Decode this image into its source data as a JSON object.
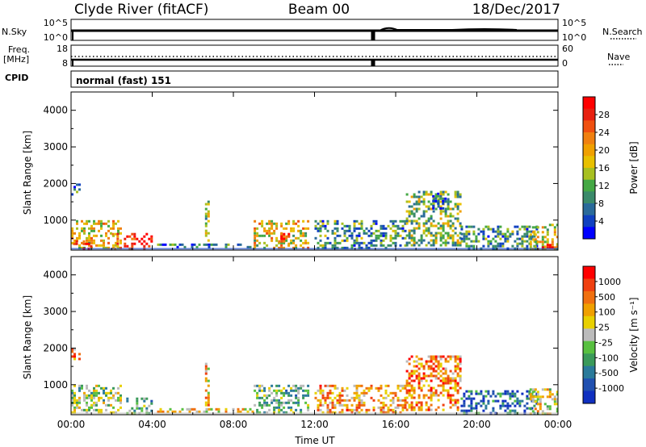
{
  "header": {
    "title": "Clyde River (fitACF)",
    "beam": "Beam 00",
    "date": "18/Dec/2017"
  },
  "strip": {
    "left_label_1": "N.Sky",
    "left_ticks_1": [
      "10^5",
      "10^0"
    ],
    "right_label_1": "N.Search",
    "right_ticks_1": [
      "10^5",
      "10^0"
    ],
    "left_label_2a": "Freq.",
    "left_label_2b": "[MHz]",
    "left_ticks_2": [
      "18",
      "8"
    ],
    "right_label_2": "Nave",
    "right_ticks_2": [
      "60",
      "0"
    ],
    "cpid_label": "CPID",
    "cpid_text": "normal (fast) 151"
  },
  "chart_data": [
    {
      "type": "heatmap",
      "title": "",
      "xlabel": "Time UT",
      "ylabel": "Slant Range [km]",
      "xlim": [
        0,
        24
      ],
      "ylim": [
        180,
        4500
      ],
      "xticks": [
        "00:00",
        "04:00",
        "08:00",
        "12:00",
        "16:00",
        "20:00",
        "00:00"
      ],
      "yticks": [
        1000,
        2000,
        3000,
        4000
      ],
      "colorbar": {
        "label": "Power [dB]",
        "ticks": [
          4,
          8,
          12,
          16,
          20,
          24,
          28
        ],
        "colors": [
          "#0000ff",
          "#1040c0",
          "#2a6a9a",
          "#3a8a6a",
          "#44a844",
          "#a8c020",
          "#e8c000",
          "#f0a000",
          "#f08010",
          "#f05010",
          "#e82010",
          "#ff0000"
        ]
      },
      "echo_regions": [
        {
          "t0": 0.0,
          "t1": 2.5,
          "r0": 200,
          "r1": 1000,
          "level": 0.55
        },
        {
          "t0": 0.1,
          "t1": 1.0,
          "r0": 200,
          "r1": 450,
          "level": 0.95
        },
        {
          "t0": 2.0,
          "t1": 2.4,
          "r0": 200,
          "r1": 650,
          "level": 0.7
        },
        {
          "t0": 2.6,
          "t1": 4.0,
          "r0": 200,
          "r1": 650,
          "level": 0.92
        },
        {
          "t0": 4.0,
          "t1": 9.0,
          "r0": 200,
          "r1": 360,
          "level": 0.25
        },
        {
          "t0": 6.6,
          "t1": 6.8,
          "r0": 400,
          "r1": 1600,
          "level": 0.4
        },
        {
          "t0": 9.0,
          "t1": 11.8,
          "r0": 200,
          "r1": 1000,
          "level": 0.55
        },
        {
          "t0": 10.2,
          "t1": 10.8,
          "r0": 300,
          "r1": 650,
          "level": 0.85
        },
        {
          "t0": 12.0,
          "t1": 16.5,
          "r0": 200,
          "r1": 1000,
          "level": 0.3
        },
        {
          "t0": 16.5,
          "t1": 19.2,
          "r0": 300,
          "r1": 1800,
          "level": 0.4
        },
        {
          "t0": 17.8,
          "t1": 18.5,
          "r0": 1300,
          "r1": 1750,
          "level": 0.2
        },
        {
          "t0": 19.2,
          "t1": 23.0,
          "r0": 200,
          "r1": 850,
          "level": 0.3
        },
        {
          "t0": 22.6,
          "t1": 24.0,
          "r0": 200,
          "r1": 900,
          "level": 0.55
        },
        {
          "t0": 23.2,
          "t1": 24.0,
          "r0": 200,
          "r1": 350,
          "level": 0.95
        },
        {
          "t0": 0.0,
          "t1": 0.5,
          "r0": 1700,
          "r1": 2000,
          "level": 0.3
        }
      ]
    },
    {
      "type": "heatmap",
      "title": "",
      "xlabel": "Time UT",
      "ylabel": "Slant Range [km]",
      "xlim": [
        0,
        24
      ],
      "ylim": [
        180,
        4500
      ],
      "xticks": [
        "00:00",
        "04:00",
        "08:00",
        "12:00",
        "16:00",
        "20:00",
        "00:00"
      ],
      "yticks": [
        1000,
        2000,
        3000,
        4000
      ],
      "colorbar": {
        "label": "Velocity [m s⁻¹]",
        "ticks": [
          1000,
          500,
          100,
          25,
          -25,
          -100,
          -500,
          -1000
        ],
        "colors": [
          "#1030c0",
          "#2050b0",
          "#2a7a9a",
          "#3a9a5a",
          "#58c040",
          "#bbbbbb",
          "#e8d000",
          "#f0a000",
          "#f07010",
          "#f04010",
          "#ff0000"
        ]
      },
      "echo_regions": [
        {
          "t0": 0.0,
          "t1": 2.5,
          "r0": 200,
          "r1": 1000,
          "level": 0.45
        },
        {
          "t0": 2.6,
          "t1": 4.0,
          "r0": 200,
          "r1": 650,
          "level": 0.35
        },
        {
          "t0": 4.0,
          "t1": 9.0,
          "r0": 200,
          "r1": 360,
          "level": 0.6
        },
        {
          "t0": 6.6,
          "t1": 6.8,
          "r0": 400,
          "r1": 1600,
          "level": 0.65
        },
        {
          "t0": 9.0,
          "t1": 11.8,
          "r0": 200,
          "r1": 1000,
          "level": 0.4
        },
        {
          "t0": 12.0,
          "t1": 16.5,
          "r0": 200,
          "r1": 1000,
          "level": 0.7
        },
        {
          "t0": 16.5,
          "t1": 19.2,
          "r0": 300,
          "r1": 1800,
          "level": 0.75
        },
        {
          "t0": 19.2,
          "t1": 23.0,
          "r0": 200,
          "r1": 850,
          "level": 0.2
        },
        {
          "t0": 22.6,
          "t1": 24.0,
          "r0": 200,
          "r1": 900,
          "level": 0.55
        },
        {
          "t0": 0.0,
          "t1": 0.5,
          "r0": 1700,
          "r1": 2000,
          "level": 0.7
        }
      ]
    }
  ]
}
